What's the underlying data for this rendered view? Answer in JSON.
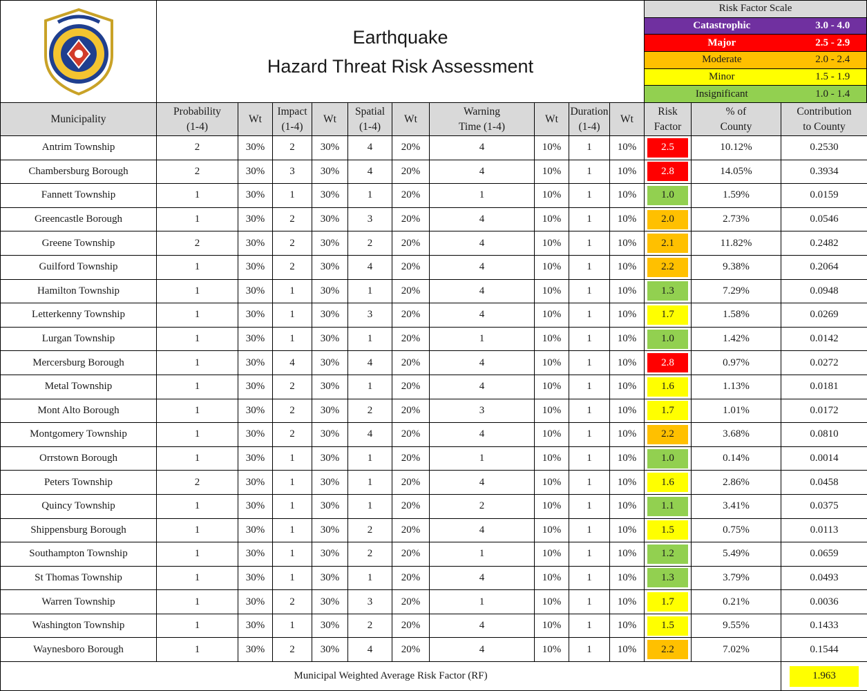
{
  "header": {
    "title_line1": "Earthquake",
    "title_line2": "Hazard Threat Risk Assessment"
  },
  "scale": {
    "title": "Risk Factor Scale",
    "levels": [
      {
        "label": "Catastrophic",
        "range": "3.0 - 4.0",
        "color": "#7030a0",
        "text_color": "#ffffff"
      },
      {
        "label": "Major",
        "range": "2.5 - 2.9",
        "color": "#ff0000",
        "text_color": "#ffffff"
      },
      {
        "label": "Moderate",
        "range": "2.0 - 2.4",
        "color": "#ffc000",
        "text_color": "#1a1a1a"
      },
      {
        "label": "Minor",
        "range": "1.5 - 1.9",
        "color": "#ffff00",
        "text_color": "#1a1a1a"
      },
      {
        "label": "Insignificant",
        "range": "1.0 - 1.4",
        "color": "#92d050",
        "text_color": "#1a1a1a"
      }
    ]
  },
  "table": {
    "columns": [
      "Municipality",
      "Probability\n(1-4)",
      "Wt",
      "Impact\n(1-4)",
      "Wt",
      "Spatial\n(1-4)",
      "Wt",
      "Warning\nTime (1-4)",
      "Wt",
      "Duration\n(1-4)",
      "Wt",
      "Risk\nFactor",
      "% of\nCounty",
      "Contribution\nto County"
    ],
    "rows": [
      [
        "Antrim Township",
        "2",
        "30%",
        "2",
        "30%",
        "4",
        "20%",
        "4",
        "10%",
        "1",
        "10%",
        "2.5",
        "10.12%",
        "0.2530"
      ],
      [
        "Chambersburg Borough",
        "2",
        "30%",
        "3",
        "30%",
        "4",
        "20%",
        "4",
        "10%",
        "1",
        "10%",
        "2.8",
        "14.05%",
        "0.3934"
      ],
      [
        "Fannett Township",
        "1",
        "30%",
        "1",
        "30%",
        "1",
        "20%",
        "1",
        "10%",
        "1",
        "10%",
        "1.0",
        "1.59%",
        "0.0159"
      ],
      [
        "Greencastle Borough",
        "1",
        "30%",
        "2",
        "30%",
        "3",
        "20%",
        "4",
        "10%",
        "1",
        "10%",
        "2.0",
        "2.73%",
        "0.0546"
      ],
      [
        "Greene Township",
        "2",
        "30%",
        "2",
        "30%",
        "2",
        "20%",
        "4",
        "10%",
        "1",
        "10%",
        "2.1",
        "11.82%",
        "0.2482"
      ],
      [
        "Guilford Township",
        "1",
        "30%",
        "2",
        "30%",
        "4",
        "20%",
        "4",
        "10%",
        "1",
        "10%",
        "2.2",
        "9.38%",
        "0.2064"
      ],
      [
        "Hamilton Township",
        "1",
        "30%",
        "1",
        "30%",
        "1",
        "20%",
        "4",
        "10%",
        "1",
        "10%",
        "1.3",
        "7.29%",
        "0.0948"
      ],
      [
        "Letterkenny  Township",
        "1",
        "30%",
        "1",
        "30%",
        "3",
        "20%",
        "4",
        "10%",
        "1",
        "10%",
        "1.7",
        "1.58%",
        "0.0269"
      ],
      [
        "Lurgan Township",
        "1",
        "30%",
        "1",
        "30%",
        "1",
        "20%",
        "1",
        "10%",
        "1",
        "10%",
        "1.0",
        "1.42%",
        "0.0142"
      ],
      [
        "Mercersburg Borough",
        "1",
        "30%",
        "4",
        "30%",
        "4",
        "20%",
        "4",
        "10%",
        "1",
        "10%",
        "2.8",
        "0.97%",
        "0.0272"
      ],
      [
        "Metal Township",
        "1",
        "30%",
        "2",
        "30%",
        "1",
        "20%",
        "4",
        "10%",
        "1",
        "10%",
        "1.6",
        "1.13%",
        "0.0181"
      ],
      [
        "Mont Alto Borough",
        "1",
        "30%",
        "2",
        "30%",
        "2",
        "20%",
        "3",
        "10%",
        "1",
        "10%",
        "1.7",
        "1.01%",
        "0.0172"
      ],
      [
        "Montgomery Township",
        "1",
        "30%",
        "2",
        "30%",
        "4",
        "20%",
        "4",
        "10%",
        "1",
        "10%",
        "2.2",
        "3.68%",
        "0.0810"
      ],
      [
        "Orrstown Borough",
        "1",
        "30%",
        "1",
        "30%",
        "1",
        "20%",
        "1",
        "10%",
        "1",
        "10%",
        "1.0",
        "0.14%",
        "0.0014"
      ],
      [
        "Peters Township",
        "2",
        "30%",
        "1",
        "30%",
        "1",
        "20%",
        "4",
        "10%",
        "1",
        "10%",
        "1.6",
        "2.86%",
        "0.0458"
      ],
      [
        "Quincy Township",
        "1",
        "30%",
        "1",
        "30%",
        "1",
        "20%",
        "2",
        "10%",
        "1",
        "10%",
        "1.1",
        "3.41%",
        "0.0375"
      ],
      [
        "Shippensburg Borough",
        "1",
        "30%",
        "1",
        "30%",
        "2",
        "20%",
        "4",
        "10%",
        "1",
        "10%",
        "1.5",
        "0.75%",
        "0.0113"
      ],
      [
        "Southampton Township",
        "1",
        "30%",
        "1",
        "30%",
        "2",
        "20%",
        "1",
        "10%",
        "1",
        "10%",
        "1.2",
        "5.49%",
        "0.0659"
      ],
      [
        "St Thomas Township",
        "1",
        "30%",
        "1",
        "30%",
        "1",
        "20%",
        "4",
        "10%",
        "1",
        "10%",
        "1.3",
        "3.79%",
        "0.0493"
      ],
      [
        "Warren Township",
        "1",
        "30%",
        "2",
        "30%",
        "3",
        "20%",
        "1",
        "10%",
        "1",
        "10%",
        "1.7",
        "0.21%",
        "0.0036"
      ],
      [
        "Washington Township",
        "1",
        "30%",
        "1",
        "30%",
        "2",
        "20%",
        "4",
        "10%",
        "1",
        "10%",
        "1.5",
        "9.55%",
        "0.1433"
      ],
      [
        "Waynesboro Borough",
        "1",
        "30%",
        "2",
        "30%",
        "4",
        "20%",
        "4",
        "10%",
        "1",
        "10%",
        "2.2",
        "7.02%",
        "0.1544"
      ]
    ]
  },
  "footer": {
    "label": "Municipal Weighted Average Risk Factor (RF)",
    "value": "1.963"
  }
}
